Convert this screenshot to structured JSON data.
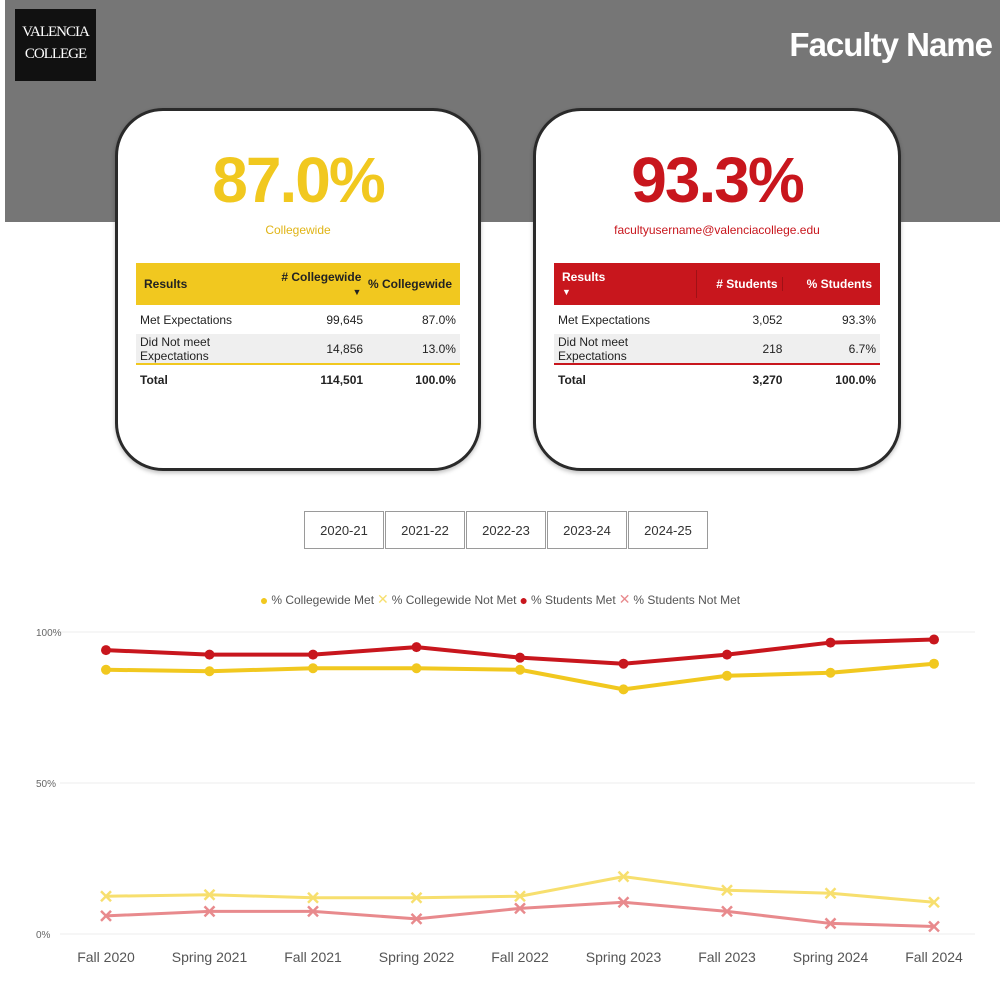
{
  "header": {
    "logo_line1": "VALENCIA",
    "logo_line2": "COLLEGE",
    "title": "Faculty Name"
  },
  "collegewide": {
    "kpi": "87.0%",
    "subtitle": "Collegewide",
    "kpi_color": "#f1c81f",
    "headers": [
      "Results",
      "# Collegewide",
      "% Collegewide"
    ],
    "rows": [
      {
        "label": "Met Expectations",
        "count": "99,645",
        "pct": "87.0%"
      },
      {
        "label": "Did Not meet Expectations",
        "count": "14,856",
        "pct": "13.0%"
      }
    ],
    "total": {
      "label": "Total",
      "count": "114,501",
      "pct": "100.0%"
    }
  },
  "students": {
    "kpi": "93.3%",
    "subtitle": "facultyusername@valenciacollege.edu",
    "kpi_color": "#c8161d",
    "headers": [
      "Results",
      "# Students",
      "% Students"
    ],
    "rows": [
      {
        "label": "Met Expectations",
        "count": "3,052",
        "pct": "93.3%"
      },
      {
        "label": "Did Not meet Expectations",
        "count": "218",
        "pct": "6.7%"
      }
    ],
    "total": {
      "label": "Total",
      "count": "3,270",
      "pct": "100.0%"
    }
  },
  "year_filters": [
    "2020-21",
    "2021-22",
    "2022-23",
    "2023-24",
    "2024-25"
  ],
  "chart_data": {
    "type": "line",
    "categories": [
      "Fall 2020",
      "Spring 2021",
      "Fall 2021",
      "Spring 2022",
      "Fall 2022",
      "Spring 2023",
      "Fall 2023",
      "Spring 2024",
      "Fall 2024"
    ],
    "y_ticks": [
      "100%",
      "50%",
      "0%"
    ],
    "ylim": [
      0,
      100
    ],
    "grid": true,
    "legend_position": "top",
    "series": [
      {
        "name": "% Collegewide Met",
        "marker": "circle",
        "color": "#f1c81f",
        "values": [
          87.5,
          87.0,
          88.0,
          88.0,
          87.5,
          81.0,
          85.5,
          86.5,
          89.5
        ]
      },
      {
        "name": "% Collegewide Not Met",
        "marker": "x",
        "color": "#f7df6e",
        "values": [
          12.5,
          13.0,
          12.0,
          12.0,
          12.5,
          19.0,
          14.5,
          13.5,
          10.5
        ]
      },
      {
        "name": "% Students Met",
        "marker": "circle",
        "color": "#c8161d",
        "values": [
          94.0,
          92.5,
          92.5,
          95.0,
          91.5,
          89.5,
          92.5,
          96.5,
          97.5
        ]
      },
      {
        "name": "% Students Not Met",
        "marker": "x",
        "color": "#e88a8d",
        "values": [
          6.0,
          7.5,
          7.5,
          5.0,
          8.5,
          10.5,
          7.5,
          3.5,
          2.5
        ]
      }
    ]
  }
}
